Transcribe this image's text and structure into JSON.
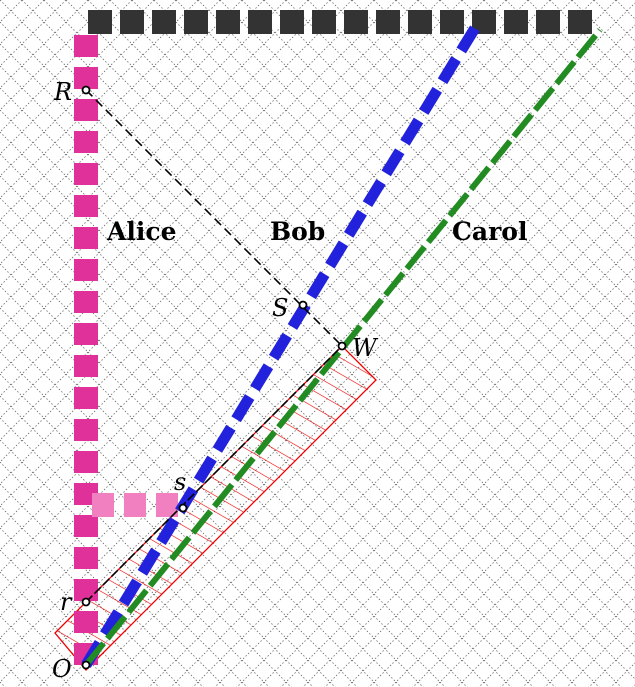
{
  "points": [
    {
      "label": "O"
    },
    {
      "label": "r"
    },
    {
      "label": "s"
    },
    {
      "label": "S"
    },
    {
      "label": "W"
    },
    {
      "label": "R"
    }
  ],
  "worldlines": [
    {
      "label": "Alice"
    },
    {
      "label": "Bob"
    },
    {
      "label": "Carol"
    }
  ]
}
